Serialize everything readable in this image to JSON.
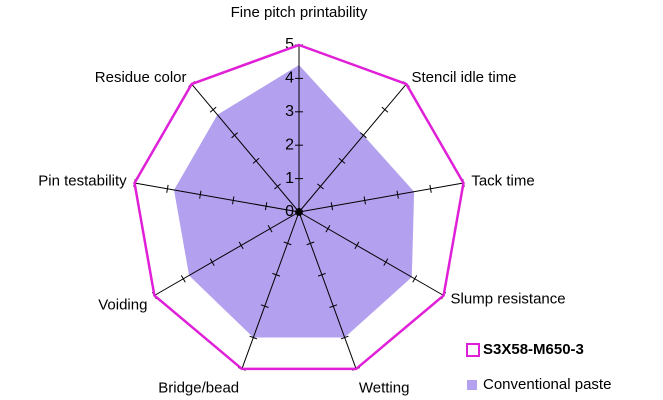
{
  "chart_data": {
    "type": "radar",
    "categories": [
      "Fine pitch printability",
      "Stencil idle time",
      "Tack time",
      "Slump resistance",
      "Wetting",
      "Bridge/bead",
      "Voiding",
      "Pin testability",
      "Residue color"
    ],
    "series": [
      {
        "name": "S3X58-M650-3",
        "color": "#e020d8",
        "style": "line",
        "values": [
          5,
          5,
          5,
          5,
          5,
          5,
          5,
          5,
          5
        ]
      },
      {
        "name": "Conventional paste",
        "color": "#b3a0ee",
        "style": "area",
        "values": [
          4.4,
          3.0,
          3.5,
          3.9,
          4.0,
          4.0,
          3.8,
          3.8,
          3.8
        ]
      }
    ],
    "rlim": [
      0,
      5
    ],
    "rticks": [
      0,
      1,
      2,
      3,
      4,
      5
    ],
    "legend": "bottom-right"
  }
}
